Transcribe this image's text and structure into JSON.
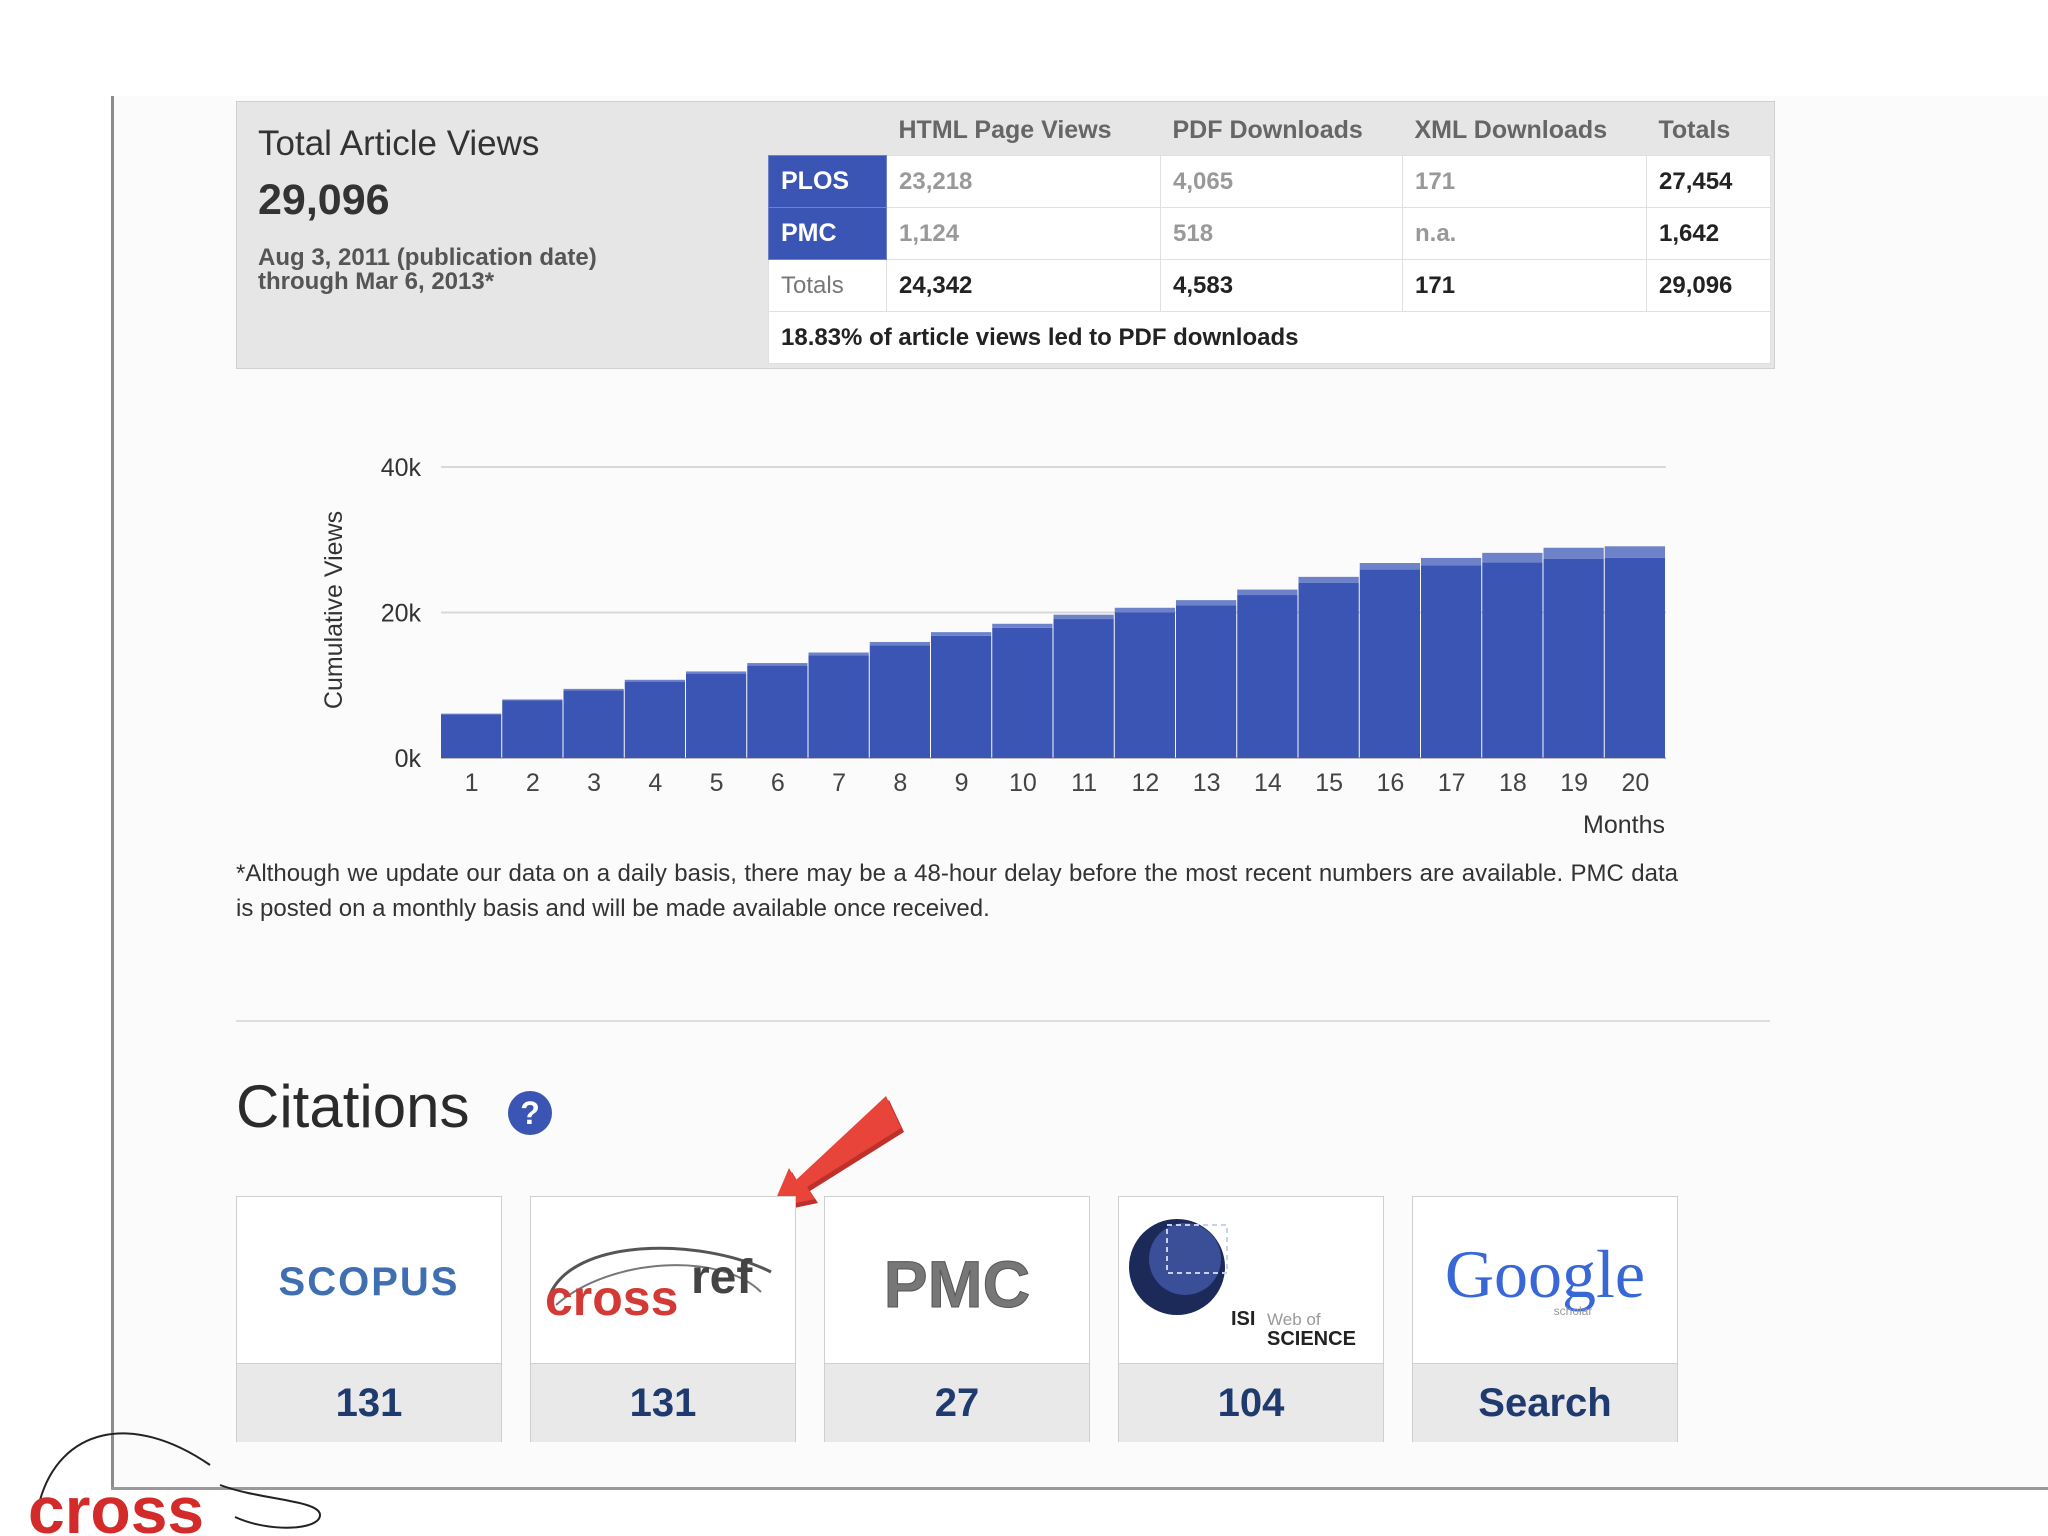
{
  "summary": {
    "title": "Total Article Views",
    "total": "29,096",
    "date_line1": "Aug 3, 2011 (publication date)",
    "date_line2": "through Mar 6, 2013*"
  },
  "views_table": {
    "headers": [
      "HTML Page Views",
      "PDF Downloads",
      "XML Downloads",
      "Totals"
    ],
    "rows": [
      {
        "source": "PLOS",
        "html": "23,218",
        "pdf": "4,065",
        "xml": "171",
        "total": "27,454"
      },
      {
        "source": "PMC",
        "html": "1,124",
        "pdf": "518",
        "xml": "n.a.",
        "total": "1,642"
      }
    ],
    "totals": {
      "label": "Totals",
      "html": "24,342",
      "pdf": "4,583",
      "xml": "171",
      "total": "29,096"
    },
    "note": "18.83% of article views led to PDF downloads"
  },
  "chart_data": {
    "type": "bar",
    "stacked": true,
    "categories": [
      "1",
      "2",
      "3",
      "4",
      "5",
      "6",
      "7",
      "8",
      "9",
      "10",
      "11",
      "12",
      "13",
      "14",
      "15",
      "16",
      "17",
      "18",
      "19",
      "20"
    ],
    "series": [
      {
        "values": [
          6000,
          7900,
          9300,
          10500,
          11600,
          12700,
          14100,
          15500,
          16800,
          17900,
          19100,
          20000,
          21000,
          22400,
          24100,
          25900,
          26500,
          26900,
          27400,
          27500
        ]
      },
      {
        "values": [
          100,
          150,
          200,
          250,
          300,
          350,
          400,
          450,
          500,
          550,
          600,
          650,
          700,
          750,
          800,
          900,
          1000,
          1300,
          1500,
          1600
        ]
      }
    ],
    "colors": [
      "#3a55b4",
      "#6d82c9"
    ],
    "ylabel": "Cumulative Views",
    "xlabel": "Months",
    "yticks": [
      "0k",
      "20k",
      "40k"
    ],
    "ylim": [
      0,
      40000
    ],
    "grid": true
  },
  "footnote": "*Although we update our data on a daily basis, there may be a 48-hour delay before the most recent numbers are available. PMC data is posted on a monthly basis and will be made available once received.",
  "citations": {
    "title": "Citations",
    "help": "?",
    "cards": [
      {
        "logo": "SCOPUS",
        "count": "131"
      },
      {
        "logo_a": "cross",
        "logo_b": "ref",
        "count": "131"
      },
      {
        "logo": "PMC",
        "count": "27"
      },
      {
        "logo_isi": "ISI",
        "logo_web": "Web of",
        "logo_sci": "SCIENCE",
        "count": "104"
      },
      {
        "logo": "Google",
        "logo_sub": "scholar",
        "count": "Search"
      }
    ]
  },
  "corner_logo": "cross",
  "colors": {
    "accent": "#3a55b4",
    "arrow": "#e8443a"
  }
}
